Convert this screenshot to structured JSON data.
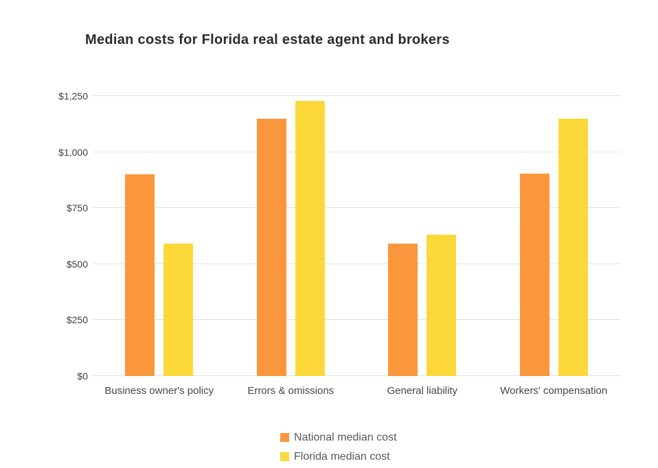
{
  "title": "Median costs for Florida real estate agent and brokers",
  "chart_data": {
    "type": "bar",
    "title": "Median costs for Florida real estate agent and brokers",
    "categories": [
      "Business owner's policy",
      "Errors & omissions",
      "General liability",
      "Workers' compensation"
    ],
    "series": [
      {
        "name": "National median cost",
        "color": "#FA963C",
        "values": [
          900,
          1150,
          590,
          905
        ]
      },
      {
        "name": "Florida median cost",
        "color": "#FCD83A",
        "values": [
          590,
          1230,
          630,
          1150
        ]
      }
    ],
    "xlabel": "",
    "ylabel": "",
    "ylim": [
      0,
      1250
    ],
    "yticks": [
      {
        "value": 0,
        "label": "$0"
      },
      {
        "value": 250,
        "label": "$250"
      },
      {
        "value": 500,
        "label": "$500"
      },
      {
        "value": 750,
        "label": "$750"
      },
      {
        "value": 1000,
        "label": "$1,000"
      },
      {
        "value": 1250,
        "label": "$1,250"
      }
    ],
    "grid": true,
    "legend_position": "bottom",
    "colors": {
      "gridline": "#dfdfdf",
      "title_text": "#2b2b2b",
      "tick_text": "#3d3d3d",
      "category_text": "#43464a",
      "legend_text": "#57585a",
      "background": "#ffffff"
    }
  }
}
